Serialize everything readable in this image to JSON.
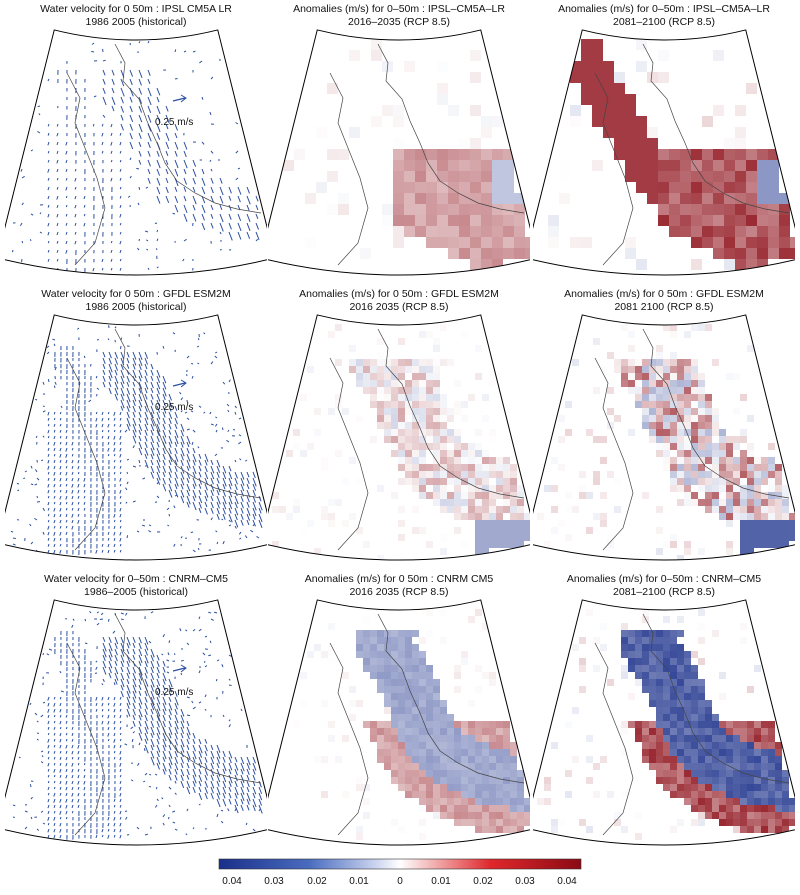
{
  "panels": [
    {
      "line1": "Water velocity for 0  50m : IPSL  CM5A  LR",
      "line2": "1986  2005 (historical)",
      "kind": "velocity",
      "model": "ipsl",
      "ref_label": "0.25 m/s"
    },
    {
      "line1": "Anomalies (m/s) for 0–50m : IPSL–CM5A–LR",
      "line2": "2016–2035 (RCP 8.5)",
      "kind": "anomaly",
      "model": "ipsl",
      "period": "near"
    },
    {
      "line1": "Anomalies (m/s) for 0–50m : IPSL–CM5A–LR",
      "line2": "2081–2100 (RCP 8.5)",
      "kind": "anomaly",
      "model": "ipsl",
      "period": "far"
    },
    {
      "line1": "Water velocity for 0  50m : GFDL  ESM2M",
      "line2": "1986  2005 (historical)",
      "kind": "velocity",
      "model": "gfdl",
      "ref_label": "0.25 m/s"
    },
    {
      "line1": "Anomalies (m/s) for 0  50m : GFDL  ESM2M",
      "line2": "2016  2035 (RCP 8.5)",
      "kind": "anomaly",
      "model": "gfdl",
      "period": "near"
    },
    {
      "line1": "Anomalies (m/s) for 0  50m : GFDL  ESM2M",
      "line2": "2081  2100 (RCP 8.5)",
      "kind": "anomaly",
      "model": "gfdl",
      "period": "far"
    },
    {
      "line1": "Water velocity for 0–50m : CNRM–CM5",
      "line2": "1986–2005 (historical)",
      "kind": "velocity",
      "model": "cnrm",
      "ref_label": "0.25 m/s"
    },
    {
      "line1": "Anomalies (m/s) for 0  50m : CNRM  CM5",
      "line2": "2016  2035 (RCP 8.5)",
      "kind": "anomaly",
      "model": "cnrm",
      "period": "near"
    },
    {
      "line1": "Anomalies (m/s) for 0–50m : CNRM–CM5",
      "line2": "2081–2100 (RCP 8.5)",
      "kind": "anomaly",
      "model": "cnrm",
      "period": "far"
    }
  ],
  "colorbar": {
    "ticks": [
      "0.04",
      "0.03",
      "0.02",
      "0.01",
      "0",
      "0.01",
      "0.02",
      "0.03",
      "0.04"
    ],
    "min": -0.04,
    "max": 0.04,
    "colors": {
      "negative": "#1a2f8a",
      "zero": "#ffffff",
      "positive": "#8b0a14"
    }
  },
  "colors": {
    "arrow": "#2b4fa0",
    "coast": "#444444",
    "frame": "#000000"
  }
}
